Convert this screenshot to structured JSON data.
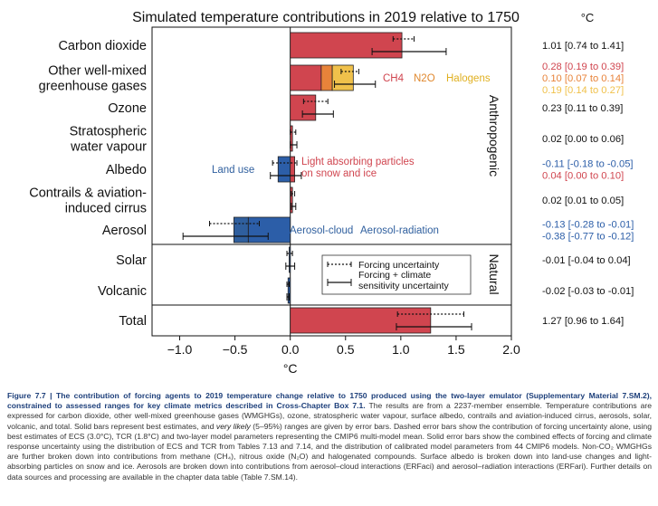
{
  "colors": {
    "red": "#d0454f",
    "orange": "#e8833a",
    "yellow": "#f0c14b",
    "blue": "#2c5ea8",
    "dark_red": "#c4373f",
    "dark_blue": "#2f5f9e",
    "ch4_text": "#d0454f",
    "n2o_text": "#e0882e",
    "halogen_text": "#e0b020",
    "landuse_text": "#2f5f9e"
  },
  "chart_data": {
    "type": "bar",
    "orientation": "horizontal",
    "title": "Simulated temperature contributions in 2019 relative to 1750",
    "unit_header": "°C",
    "xlabel": "°C",
    "xlim": [
      -1.25,
      2.0
    ],
    "xticks": [
      -1.0,
      -0.5,
      0.0,
      0.5,
      1.0,
      1.5,
      2.0
    ],
    "xtick_labels": [
      "−1.0",
      "−0.5",
      "0.0",
      "0.5",
      "1.0",
      "1.5",
      "2.0"
    ],
    "group_labels": {
      "anthropogenic": "Anthropogenic",
      "natural": "Natural"
    },
    "categories": [
      {
        "label": "Carbon dioxide",
        "segments": [
          {
            "name": "CO2",
            "value": 1.01,
            "color_key": "red"
          }
        ],
        "forcing_uncertainty": [
          0.93,
          1.12
        ],
        "total_uncertainty": [
          0.74,
          1.41
        ],
        "dot": 1.01,
        "values_text": [
          {
            "text": "1.01 [0.74 to 1.41]",
            "color_key": "black"
          }
        ]
      },
      {
        "label": "Other well-mixed greenhouse gases",
        "label_lines": [
          "Other well-mixed",
          "greenhouse gases"
        ],
        "segments": [
          {
            "name": "CH4",
            "value": 0.28,
            "color_key": "red"
          },
          {
            "name": "N2O",
            "value": 0.1,
            "color_key": "orange"
          },
          {
            "name": "Halogens",
            "value": 0.19,
            "color_key": "yellow"
          }
        ],
        "forcing_uncertainty": [
          0.46,
          0.62
        ],
        "total_uncertainty": [
          0.4,
          0.77
        ],
        "dot": 0.57,
        "inline_labels": [
          "CH4",
          "N2O",
          "Halogens"
        ],
        "values_text": [
          {
            "text": "0.28 [0.19 to 0.39]",
            "color_key": "red"
          },
          {
            "text": "0.10 [0.07 to 0.14]",
            "color_key": "orange"
          },
          {
            "text": "0.19 [0.14 to 0.27]",
            "color_key": "yellow"
          }
        ]
      },
      {
        "label": "Ozone",
        "segments": [
          {
            "name": "O3",
            "value": 0.23,
            "color_key": "red"
          }
        ],
        "forcing_uncertainty": [
          0.12,
          0.34
        ],
        "total_uncertainty": [
          0.11,
          0.39
        ],
        "dot": 0.23,
        "values_text": [
          {
            "text": "0.23 [0.11 to 0.39]",
            "color_key": "black"
          }
        ]
      },
      {
        "label": "Stratospheric water vapour",
        "label_lines": [
          "Stratospheric",
          "water vapour"
        ],
        "segments": [
          {
            "name": "H2O",
            "value": 0.02,
            "color_key": "red"
          }
        ],
        "forcing_uncertainty": [
          0.0,
          0.05
        ],
        "total_uncertainty": [
          0.0,
          0.06
        ],
        "dot": 0.02,
        "values_text": [
          {
            "text": "0.02 [0.00 to 0.06]",
            "color_key": "black"
          }
        ]
      },
      {
        "label": "Albedo",
        "segments": [
          {
            "name": "Land use",
            "value": -0.11,
            "color_key": "blue"
          },
          {
            "name": "Light absorbing particles on snow and ice",
            "value": 0.04,
            "color_key": "red"
          }
        ],
        "forcing_uncertainty": [
          -0.16,
          0.06
        ],
        "total_uncertainty": [
          -0.18,
          0.1
        ],
        "dot": -0.07,
        "inline_labels": [
          "Land use",
          "Light absorbing particles",
          "on snow and ice"
        ],
        "values_text": [
          {
            "text": "-0.11 [-0.18 to -0.05]",
            "color_key": "blue"
          },
          {
            "text": "0.04 [0.00 to 0.10]",
            "color_key": "red"
          }
        ]
      },
      {
        "label": "Contrails & aviation-induced cirrus",
        "label_lines": [
          "Contrails & aviation-",
          "induced cirrus"
        ],
        "segments": [
          {
            "name": "Contrails",
            "value": 0.02,
            "color_key": "red"
          }
        ],
        "forcing_uncertainty": [
          0.01,
          0.04
        ],
        "total_uncertainty": [
          0.01,
          0.05
        ],
        "dot": 0.02,
        "values_text": [
          {
            "text": "0.02 [0.01 to 0.05]",
            "color_key": "black"
          }
        ]
      },
      {
        "label": "Aerosol",
        "segments": [
          {
            "name": "Aerosol-cloud",
            "value": -0.38,
            "color_key": "blue"
          },
          {
            "name": "Aerosol-radiation",
            "value": -0.13,
            "color_key": "dark_blue"
          }
        ],
        "forcing_uncertainty": [
          -0.73,
          -0.28
        ],
        "total_uncertainty": [
          -0.97,
          -0.2
        ],
        "dot": -0.51,
        "inline_labels": [
          "Aerosol-cloud",
          "Aerosol-radiation"
        ],
        "values_text": [
          {
            "text": "-0.13 [-0.28 to -0.01]",
            "color_key": "blue"
          },
          {
            "text": "-0.38 [-0.77 to -0.12]",
            "color_key": "blue"
          }
        ]
      },
      {
        "label": "Solar",
        "segments": [
          {
            "name": "Solar",
            "value": -0.01,
            "color_key": "blue"
          }
        ],
        "forcing_uncertainty": [
          -0.03,
          0.02
        ],
        "total_uncertainty": [
          -0.04,
          0.04
        ],
        "dot": -0.01,
        "values_text": [
          {
            "text": "-0.01 [-0.04 to 0.04]",
            "color_key": "black"
          }
        ]
      },
      {
        "label": "Volcanic",
        "segments": [
          {
            "name": "Volcanic",
            "value": -0.02,
            "color_key": "blue"
          }
        ],
        "forcing_uncertainty": [
          -0.03,
          -0.01
        ],
        "total_uncertainty": [
          -0.03,
          -0.01
        ],
        "dot": -0.02,
        "values_text": [
          {
            "text": "-0.02 [-0.03 to -0.01]",
            "color_key": "black"
          }
        ]
      },
      {
        "label": "Total",
        "segments": [
          {
            "name": "Total",
            "value": 1.27,
            "color_key": "red"
          }
        ],
        "forcing_uncertainty": [
          0.97,
          1.57
        ],
        "total_uncertainty": [
          0.96,
          1.64
        ],
        "dot": 1.27,
        "values_text": [
          {
            "text": "1.27 [0.96 to 1.64]",
            "color_key": "black"
          }
        ]
      }
    ],
    "legend": {
      "placement": "lower-right",
      "entries": [
        "Forcing uncertainty",
        "Forcing + climate",
        "sensitivity uncertainty"
      ]
    }
  },
  "caption": {
    "heading": "Figure 7.7 | The contribution of forcing agents to 2019 temperature change relative to 1750 produced using the two-layer emulator (Supplementary Material 7.SM.2), constrained to assessed ranges for key climate metrics described in Cross-Chapter Box 7.1.",
    "body_1": " The results are from a 2237-member ensemble. Temperature contributions are expressed for carbon dioxide, other well-mixed greenhouse gases (WMGHGs), ozone, stratospheric water vapour, surface albedo, contrails and aviation-induced cirrus, aerosols, solar, volcanic, and total. Solid bars represent best estimates, and ",
    "body_italic": "very likely",
    "body_2": " (5–95%) ranges are given by error bars. Dashed error bars show the contribution of forcing uncertainty alone, using best estimates of ECS (3.0°C), TCR (1.8°C) and two-layer model parameters representing the CMIP6 multi-model mean. Solid error bars show the combined effects of forcing and climate response uncertainty using the distribution of ECS and TCR from Tables 7.13 and 7.14, and the distribution of calibrated model parameters from 44 CMIP6 models. Non-CO₂ WMGHGs are further broken down into contributions from methane (CH₄), nitrous oxide (N₂O) and halogenated compounds. Surface albedo is broken down into land-use changes and light-absorbing particles on snow and ice. Aerosols are broken down into contributions from aerosol–cloud interactions (ERFaci) and aerosol–radiation interactions (ERFari). Further details on data sources and processing are available in the chapter data table (Table 7.SM.14)."
  }
}
